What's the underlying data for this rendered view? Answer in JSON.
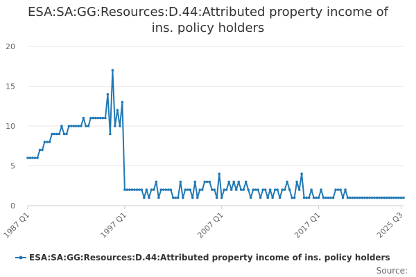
{
  "chart_data": {
    "type": "line",
    "title_lines": [
      "ESA:SA:GG:Resources:D.44:Attributed property income of",
      "ins. policy holders"
    ],
    "xlabel": "",
    "ylabel": "",
    "x_tick_labels": [
      "1987 Q1",
      "1997 Q1",
      "2007 Q1",
      "2017 Q1",
      "2025 Q3"
    ],
    "y_ticks": [
      0,
      5,
      10,
      15,
      20
    ],
    "ylim": [
      0,
      20
    ],
    "grid": "horizontal",
    "legend_position": "bottom",
    "series": [
      {
        "name": "ESA:SA:GG:Resources:D.44:Attributed property income of ins. policy holders",
        "color": "#1f78b4",
        "start_quarter": "1987 Q1",
        "values": [
          6,
          6,
          6,
          6,
          6,
          7,
          7,
          8,
          8,
          8,
          9,
          9,
          9,
          9,
          10,
          9,
          9,
          10,
          10,
          10,
          10,
          10,
          10,
          11,
          10,
          10,
          11,
          11,
          11,
          11,
          11,
          11,
          11,
          14,
          9,
          17,
          10,
          12,
          10,
          13,
          2,
          2,
          2,
          2,
          2,
          2,
          2,
          2,
          1,
          2,
          1,
          2,
          2,
          3,
          1,
          2,
          2,
          2,
          2,
          2,
          1,
          1,
          1,
          3,
          1,
          2,
          2,
          2,
          1,
          3,
          1,
          2,
          2,
          3,
          3,
          3,
          2,
          2,
          1,
          4,
          1,
          2,
          2,
          3,
          2,
          3,
          2,
          3,
          2,
          2,
          3,
          2,
          1,
          2,
          2,
          2,
          1,
          2,
          2,
          1,
          2,
          1,
          2,
          2,
          1,
          2,
          2,
          3,
          2,
          1,
          1,
          3,
          2,
          4,
          1,
          1,
          1,
          2,
          1,
          1,
          1,
          2,
          1,
          1,
          1,
          1,
          1,
          2,
          2,
          2,
          1,
          2,
          1,
          1,
          1,
          1,
          1,
          1,
          1,
          1,
          1,
          1,
          1,
          1,
          1,
          1,
          1,
          1,
          1,
          1,
          1,
          1,
          1,
          1,
          1,
          1
        ]
      }
    ]
  },
  "footer": {
    "source_label": "Source:"
  }
}
